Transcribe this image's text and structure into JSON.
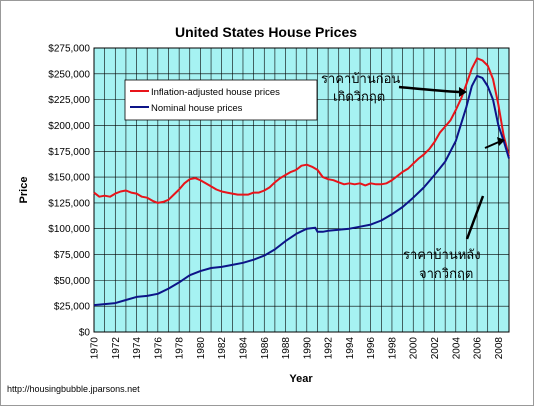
{
  "source_credit": "http://housingbubble.jparsons.net",
  "annotations": {
    "before_crisis": [
      "ราคาบ้านก่อน",
      "เกิดวิกฤต"
    ],
    "after_crisis": [
      "ราคาบ้านหลัง",
      "จากวิกฤต"
    ],
    "arrow_color": "#000000"
  },
  "colors": {
    "plot_background": "#a6f2f2",
    "grid": "#000000",
    "inflation_line": "#e8141a",
    "nominal_line": "#0d1488"
  },
  "chart_data": {
    "type": "line",
    "title": "United States House Prices",
    "xlabel": "Year",
    "ylabel": "Price",
    "xlim": [
      1970,
      2009
    ],
    "ylim": [
      0,
      275000
    ],
    "grid": true,
    "legend_position": "top-left",
    "x_ticks": [
      "1970",
      "1972",
      "1974",
      "1976",
      "1978",
      "1980",
      "1982",
      "1984",
      "1986",
      "1988",
      "1990",
      "1992",
      "1994",
      "1996",
      "1998",
      "2000",
      "2002",
      "2004",
      "2006",
      "2008"
    ],
    "y_ticks": [
      "$0",
      "$25,000",
      "$50,000",
      "$75,000",
      "$100,000",
      "$125,000",
      "$150,000",
      "$175,000",
      "$200,000",
      "$225,000",
      "$250,000",
      "$275,000"
    ],
    "series": [
      {
        "name": "Inflation-adjusted house prices",
        "color": "#e8141a",
        "points": [
          [
            1970,
            135000
          ],
          [
            1970.5,
            131000
          ],
          [
            1971,
            132000
          ],
          [
            1971.5,
            131000
          ],
          [
            1972,
            134000
          ],
          [
            1972.5,
            136000
          ],
          [
            1973,
            137000
          ],
          [
            1973.5,
            135000
          ],
          [
            1974,
            134000
          ],
          [
            1974.5,
            131000
          ],
          [
            1975,
            130000
          ],
          [
            1975.5,
            127000
          ],
          [
            1976,
            125000
          ],
          [
            1976.5,
            126000
          ],
          [
            1977,
            128000
          ],
          [
            1977.5,
            133000
          ],
          [
            1978,
            138000
          ],
          [
            1978.5,
            144000
          ],
          [
            1979,
            148000
          ],
          [
            1979.5,
            149000
          ],
          [
            1980,
            147000
          ],
          [
            1980.5,
            144000
          ],
          [
            1981,
            141000
          ],
          [
            1981.5,
            138000
          ],
          [
            1982,
            136000
          ],
          [
            1982.5,
            135000
          ],
          [
            1983,
            134000
          ],
          [
            1983.5,
            133000
          ],
          [
            1984,
            133000
          ],
          [
            1984.5,
            133000
          ],
          [
            1985,
            135000
          ],
          [
            1985.5,
            135000
          ],
          [
            1986,
            137000
          ],
          [
            1986.5,
            140000
          ],
          [
            1987,
            145000
          ],
          [
            1987.5,
            149000
          ],
          [
            1988,
            152000
          ],
          [
            1988.5,
            155000
          ],
          [
            1989,
            157000
          ],
          [
            1989.5,
            161000
          ],
          [
            1990,
            162000
          ],
          [
            1990.5,
            160000
          ],
          [
            1991,
            157000
          ],
          [
            1991.5,
            150000
          ],
          [
            1992,
            148000
          ],
          [
            1992.5,
            147000
          ],
          [
            1993,
            145000
          ],
          [
            1993.5,
            143000
          ],
          [
            1994,
            144000
          ],
          [
            1994.5,
            143000
          ],
          [
            1995,
            144000
          ],
          [
            1995.5,
            142000
          ],
          [
            1996,
            144000
          ],
          [
            1996.5,
            143000
          ],
          [
            1997,
            143000
          ],
          [
            1997.5,
            144000
          ],
          [
            1998,
            147000
          ],
          [
            1998.5,
            151000
          ],
          [
            1999,
            155000
          ],
          [
            1999.5,
            158000
          ],
          [
            2000,
            163000
          ],
          [
            2000.5,
            168000
          ],
          [
            2001,
            172000
          ],
          [
            2001.5,
            177000
          ],
          [
            2002,
            184000
          ],
          [
            2002.5,
            193000
          ],
          [
            2003,
            199000
          ],
          [
            2003.5,
            205000
          ],
          [
            2004,
            215000
          ],
          [
            2004.5,
            226000
          ],
          [
            2005,
            240000
          ],
          [
            2005.5,
            255000
          ],
          [
            2006,
            265000
          ],
          [
            2006.5,
            263000
          ],
          [
            2007,
            258000
          ],
          [
            2007.5,
            245000
          ],
          [
            2008,
            220000
          ],
          [
            2008.5,
            190000
          ],
          [
            2009,
            170000
          ]
        ]
      },
      {
        "name": "Nominal house prices",
        "color": "#0d1488",
        "points": [
          [
            1970,
            26000
          ],
          [
            1971,
            27000
          ],
          [
            1972,
            28000
          ],
          [
            1973,
            31000
          ],
          [
            1974,
            34000
          ],
          [
            1975,
            35000
          ],
          [
            1976,
            37000
          ],
          [
            1977,
            42000
          ],
          [
            1978,
            48000
          ],
          [
            1979,
            55000
          ],
          [
            1980,
            59000
          ],
          [
            1981,
            62000
          ],
          [
            1982,
            63000
          ],
          [
            1983,
            65000
          ],
          [
            1984,
            67000
          ],
          [
            1985,
            70000
          ],
          [
            1986,
            74000
          ],
          [
            1987,
            80000
          ],
          [
            1988,
            88000
          ],
          [
            1989,
            95000
          ],
          [
            1990,
            100000
          ],
          [
            1990.8,
            101000
          ],
          [
            1991,
            97000
          ],
          [
            1991.5,
            97000
          ],
          [
            1992,
            98000
          ],
          [
            1993,
            99000
          ],
          [
            1994,
            100000
          ],
          [
            1995,
            102000
          ],
          [
            1996,
            104000
          ],
          [
            1997,
            108000
          ],
          [
            1998,
            114000
          ],
          [
            1999,
            121000
          ],
          [
            2000,
            130000
          ],
          [
            2001,
            140000
          ],
          [
            2002,
            152000
          ],
          [
            2003,
            165000
          ],
          [
            2004,
            185000
          ],
          [
            2005,
            218000
          ],
          [
            2005.5,
            238000
          ],
          [
            2006,
            248000
          ],
          [
            2006.5,
            246000
          ],
          [
            2007,
            238000
          ],
          [
            2007.5,
            225000
          ],
          [
            2008,
            200000
          ],
          [
            2008.5,
            185000
          ],
          [
            2009,
            168000
          ]
        ]
      }
    ]
  }
}
